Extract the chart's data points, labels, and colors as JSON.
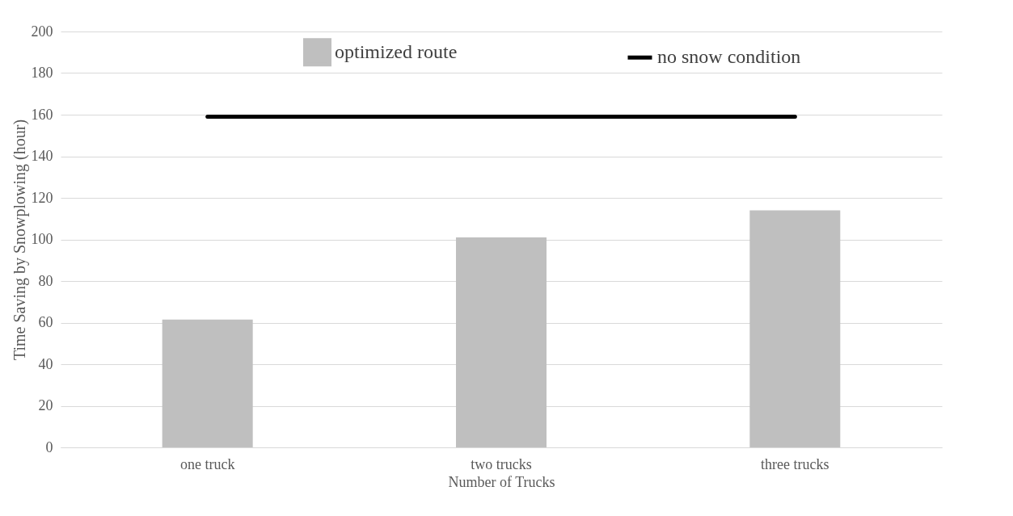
{
  "chart_data": {
    "type": "bar",
    "xlabel": "Number of Trucks",
    "ylabel": "Time Saving by Snowplowing (hour)",
    "categories": [
      "one truck",
      "two trucks",
      "three trucks"
    ],
    "series": [
      {
        "name": "optimized route",
        "color": "#bfbfbf",
        "values": [
          61.5,
          101,
          114
        ]
      },
      {
        "name": "no snow condition",
        "type": "line",
        "color": "#000000",
        "values": [
          159,
          159,
          159
        ]
      }
    ],
    "ylim": [
      0,
      200
    ],
    "yticks": [
      0,
      20,
      40,
      60,
      80,
      100,
      120,
      140,
      160,
      180,
      200
    ],
    "grid": "y",
    "legend": "top",
    "marker": "none",
    "line_style": "solid"
  }
}
